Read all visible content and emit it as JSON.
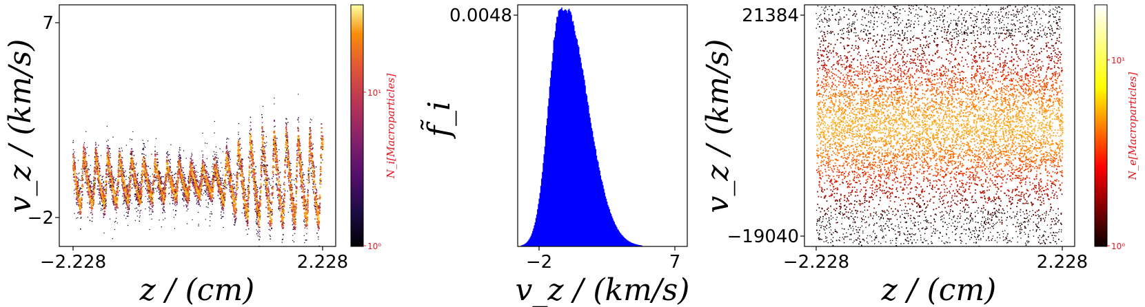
{
  "chart_data": [
    {
      "type": "heatmap",
      "title": "",
      "xlabel": "z / (cm)",
      "ylabel": "v_z / (km/s)",
      "x_ticks": [
        "−2.228",
        "2.228"
      ],
      "y_ticks": [
        "7",
        "−2"
      ],
      "xlim": [
        -2.228,
        2.228
      ],
      "ylim": [
        -2.4,
        7.8
      ],
      "pattern": {
        "wave_periods": 21,
        "core_vz": 0.3,
        "amplitude_vz_left": 1.9,
        "amplitude_vz_middle": 0.9,
        "amplitude_vz_right": 2.9
      },
      "colorbar": {
        "colormap": "inferno",
        "scale": "log",
        "label": "N_i[Macroparticles]",
        "ticks": [
          "10⁰",
          "10¹"
        ]
      },
      "colors": {
        "colorbar_text": "#e8141e"
      }
    },
    {
      "type": "bar",
      "title": "",
      "xlabel": "v_z / (km/s)",
      "ylabel": "f̃_i",
      "x_ticks": [
        "−2",
        "7"
      ],
      "y_ticks": [
        "0.0048"
      ],
      "xlim": [
        -2.8,
        7.6
      ],
      "ylim": [
        0,
        0.0049
      ],
      "peak": {
        "x": -0.2,
        "y": 0.0048
      },
      "fill_color": "#0000ff"
    },
    {
      "type": "heatmap",
      "title": "",
      "xlabel": "z / (cm)",
      "ylabel": "v_z / (km/s)",
      "x_ticks": [
        "−2.228",
        "2.228"
      ],
      "y_ticks": [
        "21384",
        "−19040"
      ],
      "xlim": [
        -2.228,
        2.228
      ],
      "ylim": [
        -20500,
        22000
      ],
      "pattern": {
        "band_half_width_vz": 17000,
        "core_half_width_vz": 9000
      },
      "colorbar": {
        "colormap": "hot",
        "scale": "log",
        "label": "N_e[Macroparticles]",
        "ticks": [
          "10⁰",
          "10¹"
        ]
      },
      "colors": {
        "colorbar_text": "#e8141e"
      }
    }
  ]
}
